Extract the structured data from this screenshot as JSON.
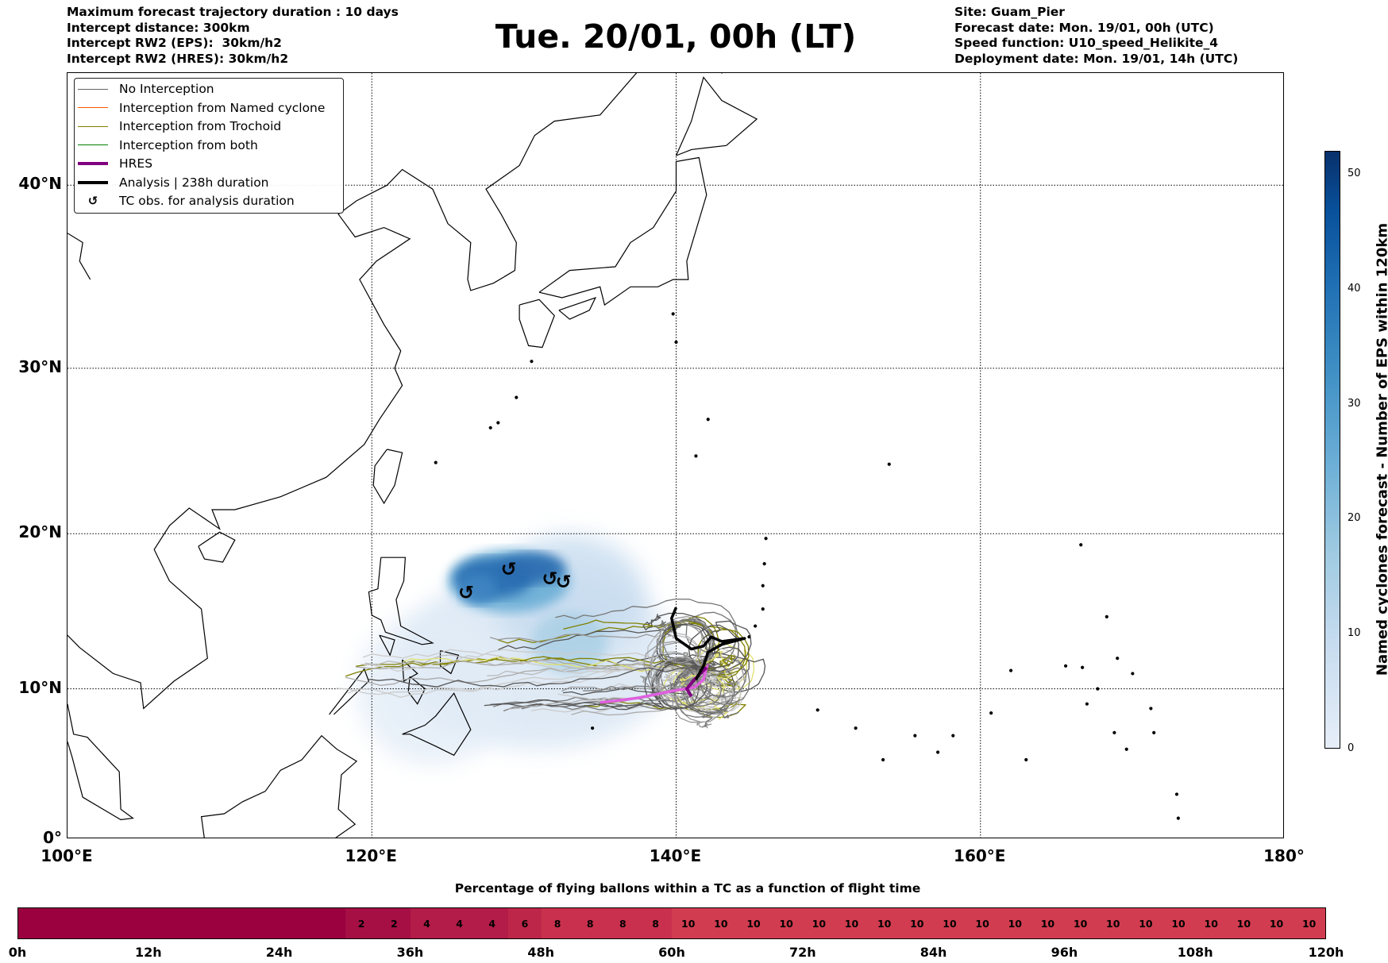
{
  "header": {
    "left": [
      "Maximum forecast trajectory duration : 10 days",
      "Intercept distance: 300km",
      "Intercept RW2 (EPS):  30km/h2",
      "Intercept RW2 (HRES): 30km/h2"
    ],
    "title": "Tue. 20/01, 00h (LT)",
    "right": [
      "Site: Guam_Pier",
      "Forecast date: Mon. 19/01, 00h (UTC)",
      "Speed function: U10_speed_Helikite_4",
      "Deployment date: Mon. 19/01, 14h (UTC)"
    ]
  },
  "map": {
    "lon_ticks": [
      "100°E",
      "120°E",
      "140°E",
      "160°E",
      "180°"
    ],
    "lat_ticks": [
      "0°",
      "10°N",
      "20°N",
      "30°N",
      "40°N"
    ],
    "lon_values": [
      100,
      120,
      140,
      160,
      180
    ],
    "lat_values": [
      0,
      10,
      20,
      30,
      40
    ],
    "extent": {
      "lon": [
        100,
        180
      ],
      "lat": [
        0,
        45.5
      ]
    }
  },
  "legend": [
    {
      "label": "No Interception",
      "color": "#666666",
      "kind": "line"
    },
    {
      "label": "Interception from Named cyclone",
      "color": "#ff5500",
      "kind": "line"
    },
    {
      "label": "Interception from Trochoid",
      "color": "#808000",
      "kind": "line"
    },
    {
      "label": "Interception from both",
      "color": "#008000",
      "kind": "line"
    },
    {
      "label": "HRES",
      "color": "#800080",
      "kind": "thick"
    },
    {
      "label": "Analysis | 238h duration",
      "color": "#000000",
      "kind": "thick"
    },
    {
      "label": "TC obs. for analysis duration",
      "symbol": "↺",
      "kind": "symbol"
    }
  ],
  "colorbar": {
    "label": "Named cyclones forecast - Number of EPS within 120km",
    "ticks": [
      "0",
      "10",
      "20",
      "30",
      "40",
      "50"
    ],
    "tick_values": [
      0,
      10,
      20,
      30,
      40,
      50
    ],
    "range": [
      0,
      52
    ]
  },
  "chart_data": {
    "type": "heatmap",
    "title": "Percentage of flying ballons within a TC as a function of flight time",
    "x_ticks": [
      "0h",
      "12h",
      "24h",
      "36h",
      "48h",
      "60h",
      "72h",
      "84h",
      "96h",
      "108h",
      "120h"
    ],
    "x_tick_values": [
      0,
      12,
      24,
      36,
      48,
      60,
      72,
      84,
      96,
      108,
      120
    ],
    "bin_hours": 3,
    "values": [
      0,
      0,
      0,
      0,
      0,
      0,
      0,
      0,
      0,
      0,
      2,
      2,
      4,
      4,
      4,
      6,
      8,
      8,
      8,
      8,
      10,
      10,
      10,
      10,
      10,
      10,
      10,
      10,
      10,
      10,
      10,
      10,
      10,
      10,
      10,
      10,
      10,
      10,
      10,
      10
    ],
    "labels_shown_from_hour": 30,
    "colors": {
      "0": "#9b003f",
      "2": "#a60f44",
      "4": "#b31b48",
      "6": "#be2649",
      "8": "#c9304d",
      "10": "#d23c50"
    }
  }
}
